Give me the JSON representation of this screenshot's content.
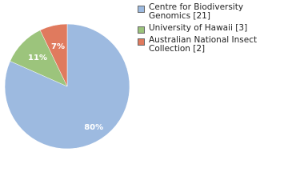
{
  "chart_data": {
    "type": "pie",
    "series": [
      {
        "name": "Centre for Biodiversity Genomics [21]",
        "color": "#9dbae0",
        "values": [
          80
        ],
        "value_labels": [
          "80%"
        ]
      },
      {
        "name": "University of Hawaii [3]",
        "color": "#9cc47c",
        "values": [
          11
        ],
        "value_labels": [
          "11%"
        ]
      },
      {
        "name": "Australian National Insect Collection [2]",
        "color": "#e07a5e",
        "values": [
          7
        ],
        "value_labels": [
          "7%"
        ]
      }
    ]
  }
}
